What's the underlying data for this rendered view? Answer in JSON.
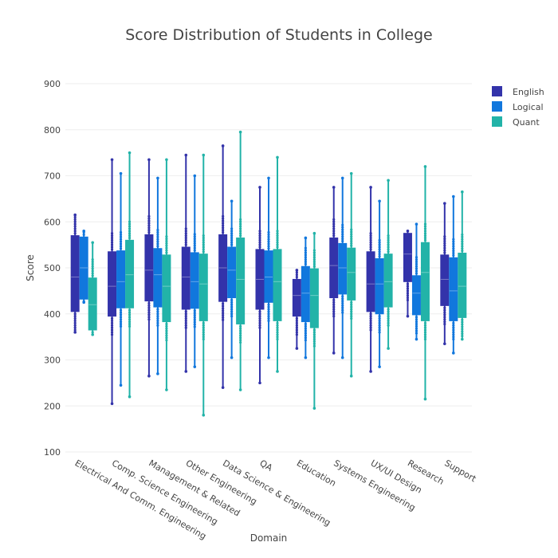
{
  "chart_data": {
    "type": "box",
    "title": "Score Distribution of Students in College",
    "xlabel": "Domain",
    "ylabel": "Score",
    "ylim": [
      100,
      900
    ],
    "yticks": [
      100,
      200,
      300,
      400,
      500,
      600,
      700,
      800,
      900
    ],
    "grid": true,
    "legend_position": "top-right",
    "categories": [
      "Electrical And Comm. Engineering",
      "Comp. Science Engineering",
      "Management & Related",
      "Other Engineering",
      "Data Science & Engineering",
      "QA",
      "Education",
      "Systems Engineering",
      "UX/UI Design",
      "Research",
      "Support"
    ],
    "series": [
      {
        "name": "English",
        "color": "#3333aa",
        "boxes": [
          {
            "min": 360,
            "q1": 405,
            "median": 480,
            "q3": 570,
            "max": 615
          },
          {
            "min": 205,
            "q1": 395,
            "median": 460,
            "q3": 535,
            "max": 735
          },
          {
            "min": 265,
            "q1": 428,
            "median": 495,
            "q3": 572,
            "max": 735
          },
          {
            "min": 275,
            "q1": 410,
            "median": 480,
            "q3": 545,
            "max": 745
          },
          {
            "min": 240,
            "q1": 427,
            "median": 500,
            "q3": 572,
            "max": 765
          },
          {
            "min": 250,
            "q1": 410,
            "median": 475,
            "q3": 540,
            "max": 675
          },
          {
            "min": 325,
            "q1": 395,
            "median": 440,
            "q3": 475,
            "max": 495
          },
          {
            "min": 315,
            "q1": 435,
            "median": 505,
            "q3": 565,
            "max": 675
          },
          {
            "min": 275,
            "q1": 405,
            "median": 465,
            "q3": 535,
            "max": 675
          },
          {
            "min": 395,
            "q1": 470,
            "median": 530,
            "q3": 575,
            "max": 580
          },
          {
            "min": 335,
            "q1": 418,
            "median": 475,
            "q3": 528,
            "max": 640
          }
        ]
      },
      {
        "name": "Logical",
        "color": "#1177dd",
        "boxes": [
          {
            "min": 425,
            "q1": 432,
            "median": 500,
            "q3": 567,
            "max": 580
          },
          {
            "min": 245,
            "q1": 413,
            "median": 470,
            "q3": 537,
            "max": 705
          },
          {
            "min": 270,
            "q1": 415,
            "median": 485,
            "q3": 542,
            "max": 695
          },
          {
            "min": 285,
            "q1": 412,
            "median": 470,
            "q3": 533,
            "max": 700
          },
          {
            "min": 305,
            "q1": 435,
            "median": 495,
            "q3": 545,
            "max": 645
          },
          {
            "min": 305,
            "q1": 425,
            "median": 480,
            "q3": 537,
            "max": 695
          },
          {
            "min": 305,
            "q1": 383,
            "median": 445,
            "q3": 503,
            "max": 565
          },
          {
            "min": 305,
            "q1": 443,
            "median": 500,
            "q3": 553,
            "max": 695
          },
          {
            "min": 285,
            "q1": 400,
            "median": 465,
            "q3": 520,
            "max": 645
          },
          {
            "min": 345,
            "q1": 398,
            "median": 445,
            "q3": 483,
            "max": 595
          },
          {
            "min": 315,
            "q1": 385,
            "median": 450,
            "q3": 522,
            "max": 655
          }
        ]
      },
      {
        "name": "Quant",
        "color": "#22b3a8",
        "boxes": [
          {
            "min": 355,
            "q1": 365,
            "median": 420,
            "q3": 478,
            "max": 555
          },
          {
            "min": 220,
            "q1": 413,
            "median": 485,
            "q3": 560,
            "max": 750
          },
          {
            "min": 235,
            "q1": 383,
            "median": 460,
            "q3": 528,
            "max": 735
          },
          {
            "min": 180,
            "q1": 385,
            "median": 465,
            "q3": 530,
            "max": 745
          },
          {
            "min": 235,
            "q1": 378,
            "median": 475,
            "q3": 565,
            "max": 795
          },
          {
            "min": 275,
            "q1": 385,
            "median": 470,
            "q3": 540,
            "max": 740
          },
          {
            "min": 195,
            "q1": 370,
            "median": 440,
            "q3": 498,
            "max": 575
          },
          {
            "min": 265,
            "q1": 430,
            "median": 490,
            "q3": 543,
            "max": 705
          },
          {
            "min": 325,
            "q1": 415,
            "median": 470,
            "q3": 530,
            "max": 690
          },
          {
            "min": 215,
            "q1": 385,
            "median": 490,
            "q3": 555,
            "max": 720
          },
          {
            "min": 345,
            "q1": 392,
            "median": 460,
            "q3": 532,
            "max": 665
          }
        ]
      }
    ]
  }
}
